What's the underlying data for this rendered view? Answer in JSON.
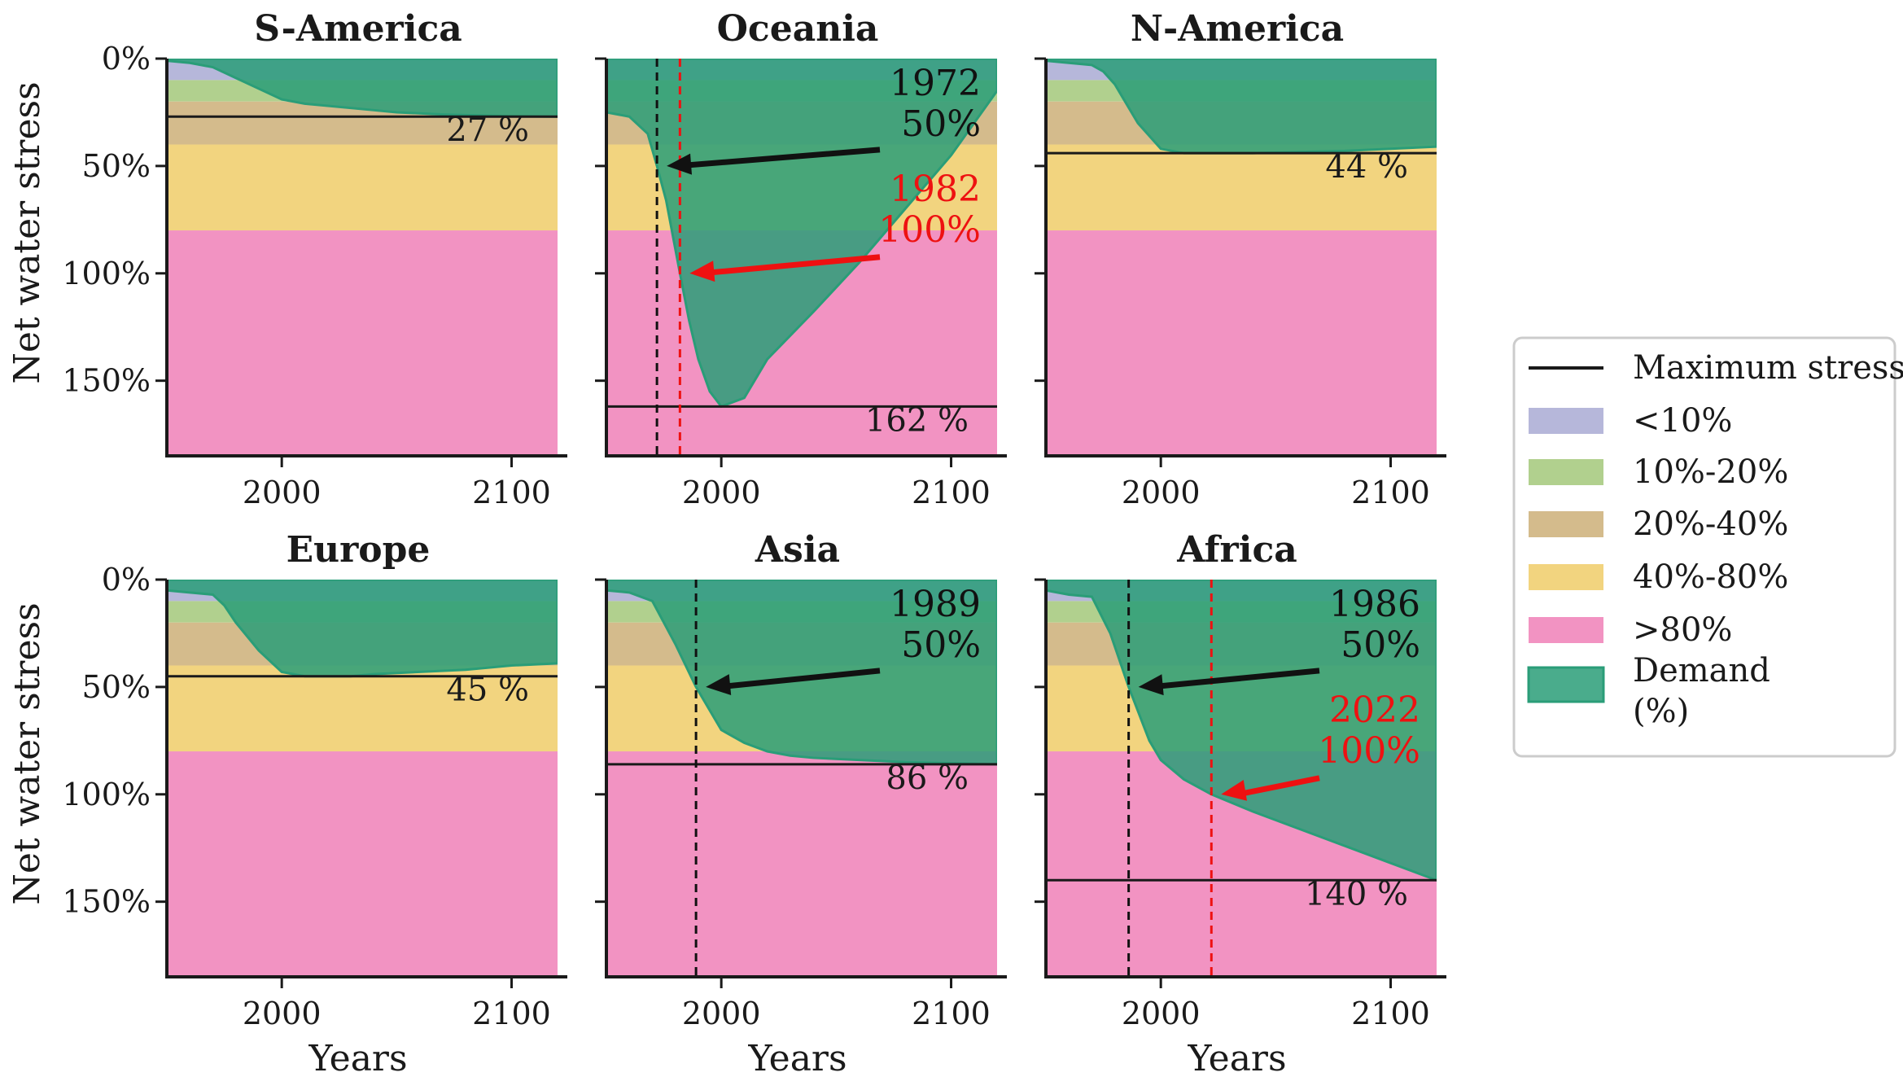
{
  "legend": {
    "items": [
      {
        "kind": "line",
        "label": "Maximum stress",
        "color": "#1a1a1a"
      },
      {
        "kind": "patch",
        "label": "<10%",
        "color": "#b6b7da"
      },
      {
        "kind": "patch",
        "label": "10%-20%",
        "color": "#b1d08e"
      },
      {
        "kind": "patch",
        "label": "20%-40%",
        "color": "#d4bb8c"
      },
      {
        "kind": "patch",
        "label": "40%-80%",
        "color": "#f2d47f"
      },
      {
        "kind": "patch",
        "label": ">80%",
        "color": "#f293c2"
      },
      {
        "kind": "patch",
        "label": "Demand",
        "label2": "(%)",
        "color": "#2a9d78"
      }
    ]
  },
  "axes": {
    "xlabel": "Years",
    "ylabel": "Net water stress",
    "xticks": [
      2000,
      2100
    ],
    "yticks": [
      {
        "value": 0,
        "label": "0%"
      },
      {
        "value": 50,
        "label": "50%"
      },
      {
        "value": 100,
        "label": "100%"
      },
      {
        "value": 150,
        "label": "150%"
      }
    ]
  },
  "chart_data": [
    {
      "type": "area",
      "title": "S-America",
      "xlim": [
        1950,
        2120
      ],
      "ylim": [
        185,
        0
      ],
      "y_inverted": true,
      "bands": [
        [
          0,
          10
        ],
        [
          10,
          20
        ],
        [
          20,
          40
        ],
        [
          40,
          80
        ],
        [
          80,
          185
        ]
      ],
      "band_colors": [
        "#b6b7da",
        "#b1d08e",
        "#d4bb8c",
        "#f2d47f",
        "#f293c2"
      ],
      "demand": {
        "x": [
          1950,
          1960,
          1970,
          1980,
          1990,
          2000,
          2010,
          2020,
          2030,
          2040,
          2050,
          2060,
          2070,
          2080,
          2090,
          2100,
          2110,
          2120
        ],
        "y": [
          1,
          2,
          4,
          9,
          14,
          19,
          21,
          22,
          23,
          24,
          25,
          25.5,
          26,
          26.3,
          26.6,
          26.8,
          26.9,
          27
        ]
      },
      "max_stress": 27,
      "max_label": "27 %",
      "annotations": []
    },
    {
      "type": "area",
      "title": "Oceania",
      "xlim": [
        1950,
        2120
      ],
      "ylim": [
        185,
        0
      ],
      "y_inverted": true,
      "bands": [
        [
          0,
          10
        ],
        [
          10,
          20
        ],
        [
          20,
          40
        ],
        [
          40,
          80
        ],
        [
          80,
          185
        ]
      ],
      "band_colors": [
        "#b6b7da",
        "#b1d08e",
        "#d4bb8c",
        "#f2d47f",
        "#f293c2"
      ],
      "demand": {
        "x": [
          1950,
          1960,
          1968,
          1972,
          1976,
          1982,
          1986,
          1990,
          1995,
          2000,
          2010,
          2020,
          2040,
          2060,
          2080,
          2100,
          2120
        ],
        "y": [
          25,
          27,
          35,
          50,
          66,
          100,
          122,
          140,
          155,
          162,
          158,
          140,
          118,
          95,
          70,
          45,
          15
        ]
      },
      "max_stress": 162,
      "max_label": "162 %",
      "annotations": [
        {
          "year": 1972,
          "value": 50,
          "year_label": "1972",
          "value_label": "50%",
          "color": "#111111"
        },
        {
          "year": 1982,
          "value": 100,
          "year_label": "1982",
          "value_label": "100%",
          "color": "#ee1111"
        }
      ]
    },
    {
      "type": "area",
      "title": "N-America",
      "xlim": [
        1950,
        2120
      ],
      "ylim": [
        185,
        0
      ],
      "y_inverted": true,
      "bands": [
        [
          0,
          10
        ],
        [
          10,
          20
        ],
        [
          20,
          40
        ],
        [
          40,
          80
        ],
        [
          80,
          185
        ]
      ],
      "band_colors": [
        "#b6b7da",
        "#b1d08e",
        "#d4bb8c",
        "#f2d47f",
        "#f293c2"
      ],
      "demand": {
        "x": [
          1950,
          1960,
          1970,
          1975,
          1980,
          1990,
          2000,
          2010,
          2020,
          2030,
          2040,
          2060,
          2080,
          2100,
          2120
        ],
        "y": [
          1,
          2,
          3,
          6,
          12,
          30,
          42,
          44,
          44,
          44,
          44,
          43.5,
          43,
          42,
          41
        ]
      },
      "max_stress": 44,
      "max_label": "44 %",
      "annotations": []
    },
    {
      "type": "area",
      "title": "Europe",
      "xlim": [
        1950,
        2120
      ],
      "ylim": [
        185,
        0
      ],
      "y_inverted": true,
      "bands": [
        [
          0,
          10
        ],
        [
          10,
          20
        ],
        [
          20,
          40
        ],
        [
          40,
          80
        ],
        [
          80,
          185
        ]
      ],
      "band_colors": [
        "#b6b7da",
        "#b1d08e",
        "#d4bb8c",
        "#f2d47f",
        "#f293c2"
      ],
      "demand": {
        "x": [
          1950,
          1960,
          1970,
          1975,
          1980,
          1990,
          2000,
          2010,
          2020,
          2030,
          2040,
          2060,
          2080,
          2100,
          2120
        ],
        "y": [
          5,
          6,
          7,
          12,
          20,
          33,
          43,
          45,
          45,
          45,
          44,
          43,
          42,
          40,
          39
        ]
      },
      "max_stress": 45,
      "max_label": "45 %",
      "annotations": []
    },
    {
      "type": "area",
      "title": "Asia",
      "xlim": [
        1950,
        2120
      ],
      "ylim": [
        185,
        0
      ],
      "y_inverted": true,
      "bands": [
        [
          0,
          10
        ],
        [
          10,
          20
        ],
        [
          20,
          40
        ],
        [
          40,
          80
        ],
        [
          80,
          185
        ]
      ],
      "band_colors": [
        "#b6b7da",
        "#b1d08e",
        "#d4bb8c",
        "#f2d47f",
        "#f293c2"
      ],
      "demand": {
        "x": [
          1950,
          1960,
          1970,
          1980,
          1989,
          2000,
          2010,
          2020,
          2030,
          2040,
          2060,
          2080,
          2100,
          2120
        ],
        "y": [
          5,
          6,
          10,
          30,
          50,
          70,
          76,
          80,
          82,
          83,
          84,
          85,
          85.5,
          86
        ]
      },
      "max_stress": 86,
      "max_label": "86 %",
      "annotations": [
        {
          "year": 1989,
          "value": 50,
          "year_label": "1989",
          "value_label": "50%",
          "color": "#111111"
        }
      ]
    },
    {
      "type": "area",
      "title": "Africa",
      "xlim": [
        1950,
        2120
      ],
      "ylim": [
        185,
        0
      ],
      "y_inverted": true,
      "bands": [
        [
          0,
          10
        ],
        [
          10,
          20
        ],
        [
          20,
          40
        ],
        [
          40,
          80
        ],
        [
          80,
          185
        ]
      ],
      "band_colors": [
        "#b6b7da",
        "#b1d08e",
        "#d4bb8c",
        "#f2d47f",
        "#f293c2"
      ],
      "demand": {
        "x": [
          1950,
          1960,
          1970,
          1978,
          1986,
          1995,
          2000,
          2010,
          2022,
          2040,
          2060,
          2080,
          2100,
          2120
        ],
        "y": [
          5,
          7,
          8,
          25,
          50,
          75,
          84,
          93,
          100,
          108,
          116,
          124,
          132,
          140
        ]
      },
      "max_stress": 140,
      "max_label": "140 %",
      "annotations": [
        {
          "year": 1986,
          "value": 50,
          "year_label": "1986",
          "value_label": "50%",
          "color": "#111111"
        },
        {
          "year": 2022,
          "value": 100,
          "year_label": "2022",
          "value_label": "100%",
          "color": "#ee1111"
        }
      ]
    }
  ]
}
